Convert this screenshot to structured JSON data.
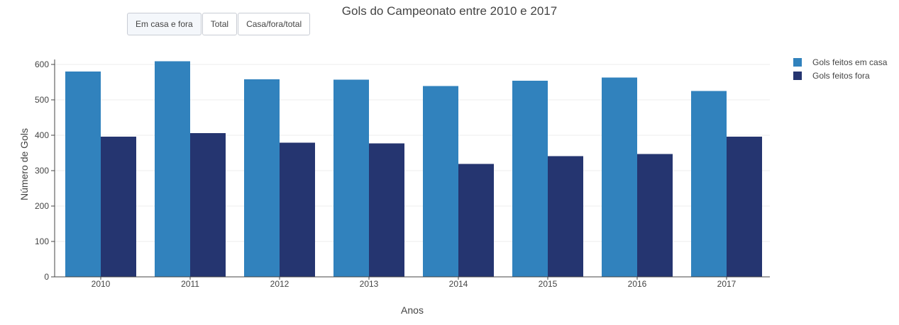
{
  "buttons": [
    {
      "label": "Em casa e fora",
      "active": true
    },
    {
      "label": "Total",
      "active": false
    },
    {
      "label": "Casa/fora/total",
      "active": false
    }
  ],
  "colors": {
    "home": "#3182bd",
    "away": "#253570",
    "grid": "#eeeeee",
    "axis": "#444444"
  },
  "chart_data": {
    "type": "bar",
    "title": "Gols do Campeonato entre 2010 e 2017",
    "xlabel": "Anos",
    "ylabel": "Número de Gols",
    "categories": [
      "2010",
      "2011",
      "2012",
      "2013",
      "2014",
      "2015",
      "2016",
      "2017"
    ],
    "series": [
      {
        "name": "Gols feitos em casa",
        "values": [
          580,
          609,
          558,
          557,
          539,
          554,
          563,
          525
        ]
      },
      {
        "name": "Gols feitos fora",
        "values": [
          396,
          406,
          379,
          377,
          319,
          341,
          347,
          396
        ]
      }
    ],
    "ylim": [
      0,
      600
    ],
    "yticks": [
      0,
      100,
      200,
      300,
      400,
      500,
      600
    ],
    "grid": true,
    "legend_position": "top-right"
  }
}
